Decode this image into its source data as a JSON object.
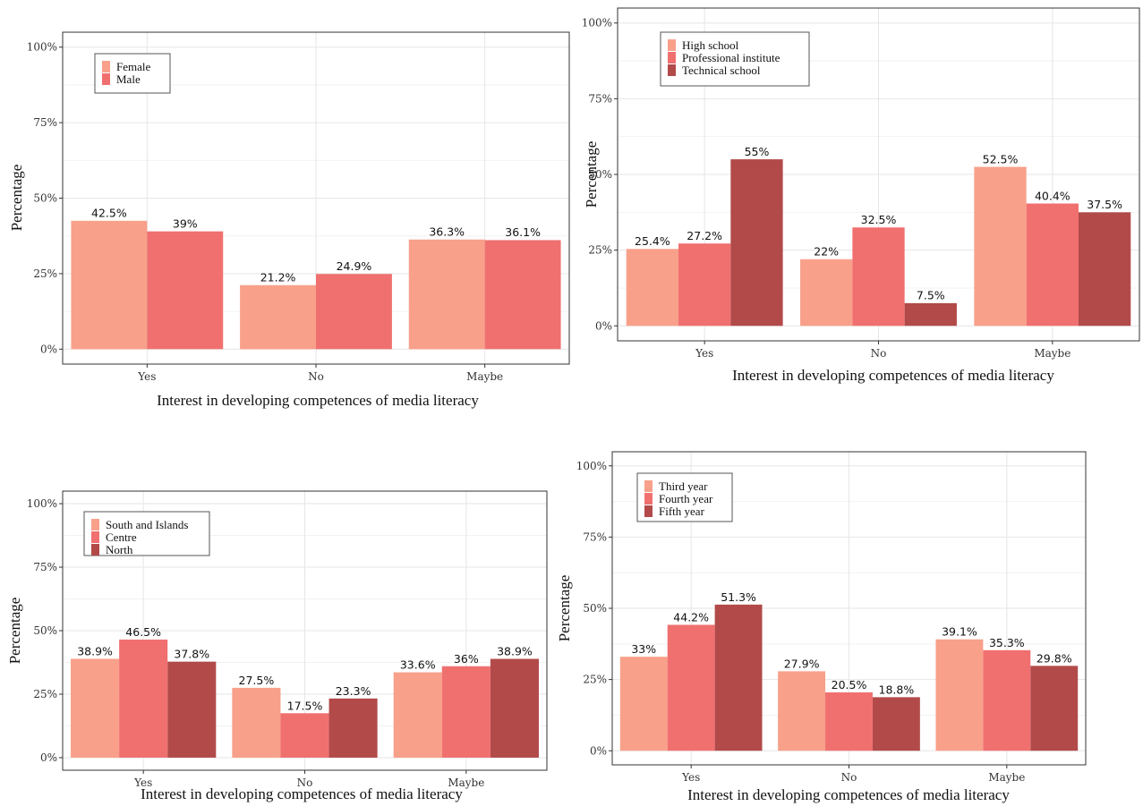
{
  "chart_data": [
    {
      "type": "bar",
      "categories": [
        "Yes",
        "No",
        "Maybe"
      ],
      "series": [
        {
          "name": "Female",
          "values": [
            42.5,
            21.2,
            36.3
          ],
          "labels": [
            "42.5%",
            "21.2%",
            "36.3%"
          ],
          "color": "#f8a08a"
        },
        {
          "name": "Male",
          "values": [
            39,
            24.9,
            36.1
          ],
          "labels": [
            "39%",
            "24.9%",
            "36.1%"
          ],
          "color": "#f07070"
        }
      ],
      "xlabel": "Interest in developing competences of media literacy",
      "ylabel": "Percentage",
      "ylim": [
        0,
        100
      ],
      "yticks": [
        "0%",
        "25%",
        "50%",
        "75%",
        "100%"
      ],
      "grid": true,
      "legend_position": "top-left"
    },
    {
      "type": "bar",
      "categories": [
        "Yes",
        "No",
        "Maybe"
      ],
      "series": [
        {
          "name": "High school",
          "values": [
            25.4,
            22,
            52.5
          ],
          "labels": [
            "25.4%",
            "22%",
            "52.5%"
          ],
          "color": "#f8a08a"
        },
        {
          "name": "Professional institute",
          "values": [
            27.2,
            32.5,
            40.4
          ],
          "labels": [
            "27.2%",
            "32.5%",
            "40.4%"
          ],
          "color": "#f07070"
        },
        {
          "name": "Technical school",
          "values": [
            55,
            7.5,
            37.5
          ],
          "labels": [
            "55%",
            "7.5%",
            "37.5%"
          ],
          "color": "#b24a4a"
        }
      ],
      "xlabel": "Interest in developing competences of media literacy",
      "ylabel": "Percentage",
      "ylim": [
        0,
        100
      ],
      "yticks": [
        "0%",
        "25%",
        "50%",
        "75%",
        "100%"
      ],
      "grid": true,
      "legend_position": "top-left"
    },
    {
      "type": "bar",
      "categories": [
        "Yes",
        "No",
        "Maybe"
      ],
      "series": [
        {
          "name": "South and Islands",
          "values": [
            38.9,
            27.5,
            33.6
          ],
          "labels": [
            "38.9%",
            "27.5%",
            "33.6%"
          ],
          "color": "#f8a08a"
        },
        {
          "name": "Centre",
          "values": [
            46.5,
            17.5,
            36
          ],
          "labels": [
            "46.5%",
            "17.5%",
            "36%"
          ],
          "color": "#f07070"
        },
        {
          "name": "North",
          "values": [
            37.8,
            23.3,
            38.9
          ],
          "labels": [
            "37.8%",
            "23.3%",
            "38.9%"
          ],
          "color": "#b24a4a"
        }
      ],
      "xlabel": "Interest in developing competences of media literacy",
      "ylabel": "Percentage",
      "ylim": [
        0,
        100
      ],
      "yticks": [
        "0%",
        "25%",
        "50%",
        "75%",
        "100%"
      ],
      "grid": true,
      "legend_position": "top-left"
    },
    {
      "type": "bar",
      "categories": [
        "Yes",
        "No",
        "Maybe"
      ],
      "series": [
        {
          "name": "Third year",
          "values": [
            33,
            27.9,
            39.1
          ],
          "labels": [
            "33%",
            "27.9%",
            "39.1%"
          ],
          "color": "#f8a08a"
        },
        {
          "name": "Fourth year",
          "values": [
            44.2,
            20.5,
            35.3
          ],
          "labels": [
            "44.2%",
            "20.5%",
            "35.3%"
          ],
          "color": "#f07070"
        },
        {
          "name": "Fifth year",
          "values": [
            51.3,
            18.8,
            29.8
          ],
          "labels": [
            "51.3%",
            "18.8%",
            "29.8%"
          ],
          "color": "#b24a4a"
        }
      ],
      "xlabel": "Interest in developing competences of media literacy",
      "ylabel": "Percentage",
      "ylim": [
        0,
        100
      ],
      "yticks": [
        "0%",
        "25%",
        "50%",
        "75%",
        "100%"
      ],
      "grid": true,
      "legend_position": "top-left"
    }
  ]
}
